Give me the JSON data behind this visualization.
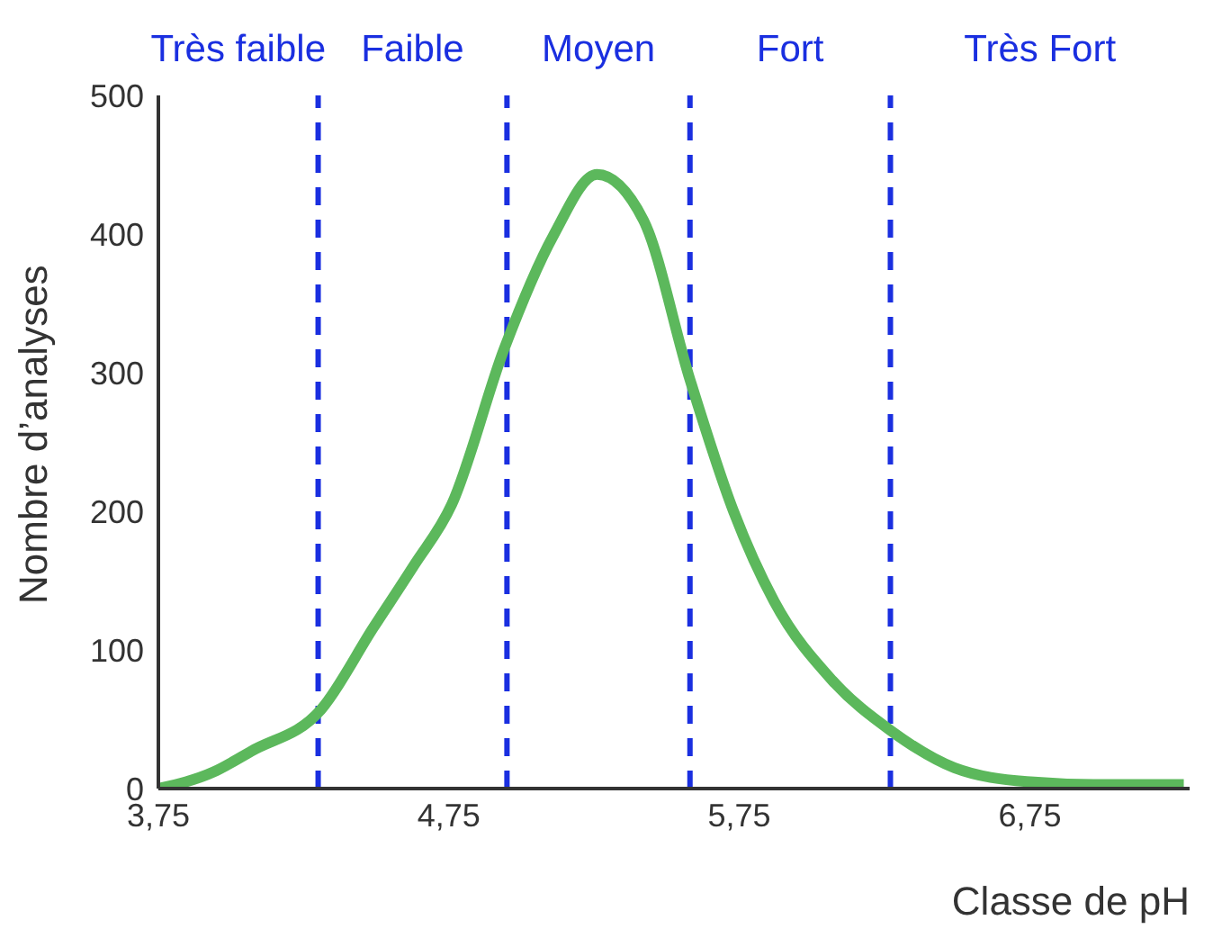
{
  "chart_data": {
    "type": "line",
    "xlabel": "Classe de pH",
    "ylabel": "Nombre d’analyses",
    "xlim": [
      3.75,
      7.3
    ],
    "ylim": [
      0,
      500
    ],
    "xticks": [
      {
        "value": 3.75,
        "label": "3,75"
      },
      {
        "value": 4.75,
        "label": "4,75"
      },
      {
        "value": 5.75,
        "label": "5,75"
      },
      {
        "value": 6.75,
        "label": "6,75"
      }
    ],
    "yticks": [
      0,
      100,
      200,
      300,
      400,
      500
    ],
    "x": [
      3.75,
      3.94,
      4.07,
      4.31,
      4.49,
      4.63,
      4.76,
      4.94,
      5.11,
      5.26,
      5.42,
      5.58,
      5.73,
      5.87,
      6.07,
      6.27,
      6.49,
      6.74,
      6.97,
      7.28
    ],
    "series": [
      {
        "color": "#5cb85c",
        "values": [
          0,
          12,
          27,
          57,
          116,
          161,
          205,
          317,
          399,
          443,
          410,
          295,
          200,
          135,
          78,
          42,
          15,
          5,
          3,
          3
        ]
      }
    ],
    "ref_lines": [
      {
        "axis": "x",
        "value": 4.3,
        "color": "#1a2fe0",
        "line_style": "dashed"
      },
      {
        "axis": "x",
        "value": 4.95,
        "color": "#1a2fe0",
        "line_style": "dashed"
      },
      {
        "axis": "x",
        "value": 5.58,
        "color": "#1a2fe0",
        "line_style": "dashed"
      },
      {
        "axis": "x",
        "value": 6.27,
        "color": "#1a2fe0",
        "line_style": "dashed"
      }
    ],
    "annotations": [
      "Très faible",
      "Faible",
      "Moyen",
      "Fort",
      "Très Fort"
    ],
    "grid": false,
    "marker": "none",
    "line_style": "solid"
  }
}
